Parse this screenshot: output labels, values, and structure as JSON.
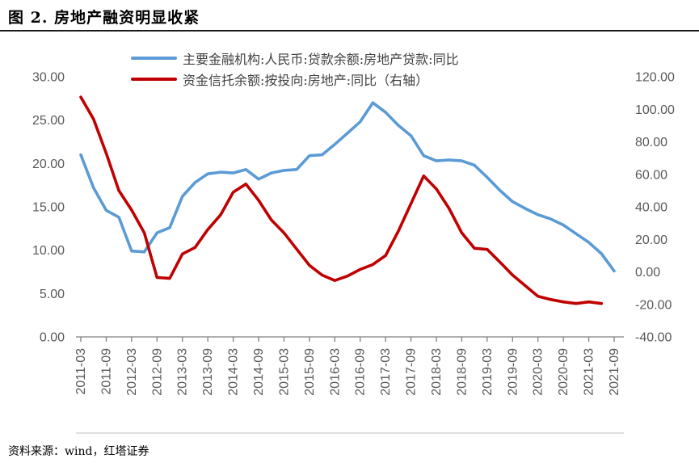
{
  "title": "图 2. 房地产融资明显收紧",
  "source_note": "资料来源：wind，红塔证券",
  "legend": [
    {
      "label": "主要金融机构:人民币:贷款余额:房地产贷款:同比",
      "color": "#5B9BD5"
    },
    {
      "label": "资金信托余额:按投向:房地产:同比（右轴）",
      "color": "#C00000"
    }
  ],
  "chart_data": {
    "type": "line",
    "title": "图 2. 房地产融资明显收紧",
    "x_tick_labels": [
      "2011-03",
      "2011-09",
      "2012-03",
      "2012-09",
      "2013-03",
      "2013-09",
      "2014-03",
      "2014-09",
      "2015-03",
      "2015-09",
      "2016-03",
      "2016-09",
      "2017-03",
      "2017-09",
      "2018-03",
      "2018-09",
      "2019-03",
      "2019-09",
      "2020-03",
      "2020-09",
      "2021-03",
      "2021-09"
    ],
    "x_frequency": "quarterly",
    "x_range": [
      "2011-03",
      "2021-09"
    ],
    "grid": false,
    "legend_position": "top",
    "left_axis": {
      "min": 0,
      "max": 30,
      "step": 5,
      "tick_labels": [
        "30.00",
        "25.00",
        "20.00",
        "15.00",
        "10.00",
        "5.00",
        "0.00"
      ]
    },
    "right_axis": {
      "min": -40,
      "max": 120,
      "step": 20,
      "tick_labels": [
        "120.00",
        "100.00",
        "80.00",
        "60.00",
        "40.00",
        "20.00",
        "0.00",
        "-20.00",
        "-40.00"
      ]
    },
    "series": [
      {
        "name": "主要金融机构:人民币:贷款余额:房地产贷款:同比",
        "axis": "left",
        "color": "#5B9BD5",
        "data_name": "loan-growth-line",
        "values": [
          21.0,
          17.2,
          14.6,
          13.8,
          9.9,
          9.8,
          12.0,
          12.6,
          16.2,
          17.8,
          18.8,
          19.0,
          18.9,
          19.3,
          18.2,
          18.9,
          19.2,
          19.3,
          20.9,
          21.0,
          22.2,
          23.5,
          24.8,
          27.0,
          25.9,
          24.4,
          23.2,
          20.9,
          20.3,
          20.4,
          20.3,
          19.8,
          18.4,
          16.9,
          15.6,
          14.8,
          14.1,
          13.6,
          12.9,
          11.9,
          10.9,
          9.6,
          7.6
        ]
      },
      {
        "name": "资金信托余额:按投向:房地产:同比（右轴）",
        "axis": "right",
        "color": "#C00000",
        "data_name": "trust-growth-line",
        "values": [
          107.5,
          94,
          73,
          50,
          38,
          24,
          -3.5,
          -4,
          11,
          15,
          26,
          35,
          49,
          54,
          44,
          32,
          24,
          14,
          4,
          -2,
          -5.3,
          -2.6,
          1.5,
          4.5,
          10,
          25,
          42,
          59,
          51,
          39,
          24,
          14.5,
          13.8,
          6,
          -2,
          -8.5,
          -15,
          -17,
          -18.5,
          -19.5,
          -18.5,
          -19.5,
          null
        ]
      }
    ]
  }
}
